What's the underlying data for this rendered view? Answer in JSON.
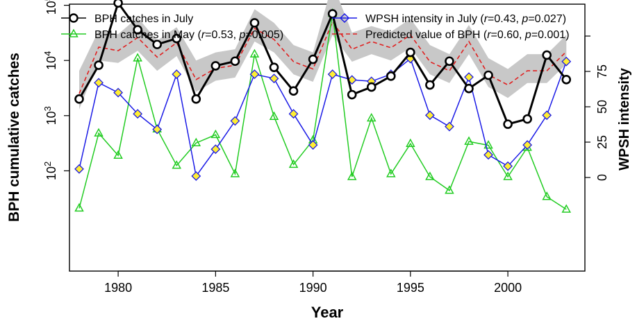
{
  "chart_data": {
    "type": "line",
    "xlabel": "Year",
    "ylabel_left": "BPH cumulative catches",
    "ylabel_right": "WPSH intensity",
    "x_ticks": [
      "1980",
      "1985",
      "1990",
      "1995",
      "2000"
    ],
    "y_left_scale": "log10",
    "y_left_ticks": [
      {
        "value": 100,
        "base": "10",
        "exp": "2"
      },
      {
        "value": 1000,
        "base": "10",
        "exp": "3"
      },
      {
        "value": 10000,
        "base": "10",
        "exp": "4"
      },
      {
        "value": 100000,
        "base": "10",
        "exp": "5"
      }
    ],
    "y_right_ticks": [
      "0",
      "25",
      "50",
      "75"
    ],
    "legend_position": "top",
    "legend": [
      {
        "key": "july",
        "pre": "BPH catches in July",
        "r": "",
        "p": ""
      },
      {
        "key": "may",
        "pre": "BPH catches in May (",
        "r": "=0.53, ",
        "p": "=0.005)"
      },
      {
        "key": "wpsh",
        "pre": "WPSH intensity in July (",
        "r": "=0.43, ",
        "p": "=0.027)"
      },
      {
        "key": "pred",
        "pre": "Predicted value of BPH (",
        "r": "=0.60, ",
        "p": "=0.001)"
      }
    ],
    "x": [
      1978,
      1979,
      1980,
      1981,
      1982,
      1983,
      1984,
      1985,
      1986,
      1987,
      1988,
      1989,
      1990,
      1991,
      1992,
      1993,
      1994,
      1995,
      1996,
      1997,
      1998,
      1999,
      2000,
      2001,
      2002,
      2003
    ],
    "series": [
      {
        "key": "july",
        "name": "BPH catches in July",
        "axis": "left",
        "color": "#000000",
        "values": [
          2000,
          8200,
          110000,
          36000,
          19500,
          25000,
          2000,
          8000,
          9700,
          48000,
          7500,
          2800,
          10500,
          70000,
          2400,
          3300,
          5200,
          14000,
          3600,
          9700,
          3100,
          5400,
          700,
          870,
          12500,
          4500
        ]
      },
      {
        "key": "may",
        "name": "BPH catches in May",
        "axis": "left",
        "color": "#22cc22",
        "values": [
          21,
          480,
          190,
          11000,
          570,
          125,
          320,
          450,
          88,
          13000,
          960,
          130,
          360,
          71000,
          78,
          900,
          88,
          310,
          78,
          44,
          340,
          290,
          78,
          265,
          34,
          20
        ]
      },
      {
        "key": "wpsh",
        "name": "WPSH intensity in July",
        "axis": "right",
        "color": "#1a1ae6",
        "marker_fill": "#ffee33",
        "values": [
          6,
          67,
          60,
          45,
          34,
          73,
          1,
          20,
          40,
          73,
          70,
          45,
          23,
          73,
          69,
          68,
          73,
          84,
          44,
          36,
          71,
          16,
          8,
          23,
          44,
          82
        ]
      },
      {
        "key": "pred",
        "name": "Predicted value of BPH",
        "axis": "left",
        "color": "#e02020",
        "values": [
          2500,
          17500,
          15000,
          26000,
          11500,
          21000,
          4500,
          7200,
          8200,
          38000,
          24000,
          9500,
          7000,
          50000,
          16000,
          22000,
          17000,
          29000,
          9500,
          6500,
          22000,
          5500,
          3600,
          6500,
          6500,
          14500
        ]
      },
      {
        "key": "band",
        "name": "",
        "axis": "left",
        "color": "#c8c8c8",
        "lower": [
          1300,
          10000,
          9000,
          15000,
          6500,
          12000,
          2700,
          4300,
          4900,
          22000,
          14000,
          5600,
          4100,
          29000,
          9500,
          13000,
          10000,
          17000,
          5600,
          3900,
          13000,
          3300,
          2100,
          3900,
          3900,
          8600
        ],
        "upper": [
          6500,
          35000,
          30000,
          60000,
          23000,
          40000,
          10000,
          14000,
          16000,
          85000,
          48000,
          19000,
          14000,
          250000,
          32000,
          42000,
          33000,
          57000,
          19000,
          13000,
          44000,
          11000,
          7000,
          13000,
          13000,
          29000
        ]
      }
    ]
  }
}
